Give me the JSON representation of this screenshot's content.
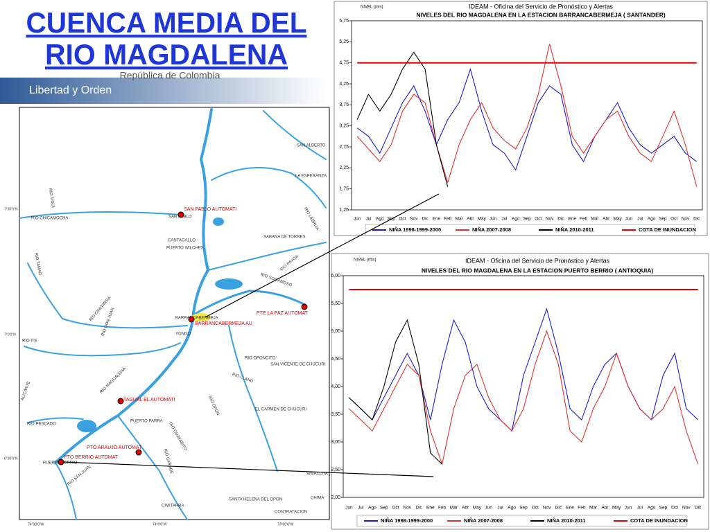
{
  "header": {
    "title_lines": [
      "CUENCA  MEDIA DEL",
      "RIO  MAGDALENA"
    ],
    "banner": "Libertad y Orden",
    "banner_sub": "República de Colombia"
  },
  "map": {
    "places": [
      "SAN ALBERTO",
      "LA ESPERANZA",
      "RIO LEBRIJA",
      "RIO TIGUI",
      "SAN PABLO",
      "RIO CHICAMOCHA",
      "SABANA DE TORRES",
      "CANTAGALLO",
      "PUERTO WILCHES",
      "RIO TAMAR",
      "RIO PAYOA",
      "RIO SOGAMOSO",
      "RIO CIMITARRA",
      "RIO DON JUAN",
      "BARRANCABERMEJA",
      "YONDO",
      "RIO ITE",
      "RIO OPONCITO",
      "SAN VICENTE DE CHUCURI",
      "RIO LLANO",
      "RIO MAGDALENA",
      "RIO OPON",
      "ALICANTE",
      "RIO PESCADO",
      "PUERTO PARRA",
      "RIO GUAYABITO",
      "EL CARMEN DE CHUCURI",
      "RIO CARARE",
      "PUERTO BERRIO",
      "RIO SAN JUAN",
      "SANTA HELENA DEL OPON",
      "CIMITARRA",
      "CHIMA",
      "CONTRATACION",
      "SIMACOTA"
    ],
    "stations": [
      "SAN PABLO AUTOMATI",
      "PTE LA PAZ AUTOMAT",
      "BARRANCABERMEJA AU",
      "TAGUAL EL AUTOMATI",
      "PTO ARAUJO AUTOMAT",
      "PTO BERRIO AUTOMAT"
    ],
    "coordinates": [
      "7°30'0\"N",
      "7°0'0\"N",
      "6°30'0\"N",
      "74°30'0\"W",
      "74°0'0\"W",
      "73°30'0\"W"
    ]
  },
  "chart_data": [
    {
      "type": "line",
      "title": "IDEAM - Oficina del Servicio de Pronóstico y Alertas",
      "subtitle": "NIVELES DEL RIO MAGDALENA EN LA ESTACION BARRANCABERMEJA ( SANTANDER)",
      "y_label": "NIVEL (mts)",
      "categories": [
        "Jun",
        "Jul",
        "Ago",
        "Sep",
        "Oct",
        "Nov",
        "Dic",
        "Ene",
        "Feb",
        "Mar",
        "Abr",
        "May",
        "Jun",
        "Jul",
        "Ago",
        "Sep",
        "Oct",
        "Nov",
        "Dic",
        "Ene",
        "Feb",
        "Mar",
        "Abr",
        "May",
        "Jun",
        "Jul",
        "Ago",
        "Sep",
        "Oct",
        "Nov",
        "Dic"
      ],
      "ylim": [
        1.25,
        5.75
      ],
      "yticks": [
        {
          "value": 1.25,
          "label": "1,25"
        },
        {
          "value": 1.75,
          "label": "1,75"
        },
        {
          "value": 2.25,
          "label": "2,25"
        },
        {
          "value": 2.75,
          "label": "2,75"
        },
        {
          "value": 3.25,
          "label": "3,25"
        },
        {
          "value": 3.75,
          "label": "3,75"
        },
        {
          "value": 4.25,
          "label": "4,25"
        },
        {
          "value": 4.75,
          "label": "4,75"
        },
        {
          "value": 5.25,
          "label": "5,25"
        },
        {
          "value": 5.75,
          "label": "5,75"
        }
      ],
      "grid": false,
      "series": [
        {
          "name": "NIÑA 1998-1999-2000",
          "color": "#1a1acc",
          "values": [
            3.2,
            3.0,
            2.6,
            3.2,
            3.8,
            4.2,
            3.6,
            2.8,
            3.4,
            3.8,
            4.6,
            3.6,
            2.8,
            2.6,
            2.2,
            3.0,
            3.8,
            4.2,
            4.0,
            2.8,
            2.4,
            3.0,
            3.4,
            3.8,
            3.2,
            2.8,
            2.6,
            2.8,
            3.0,
            2.6,
            2.4
          ]
        },
        {
          "name": "NIÑA 2007-2008",
          "color": "#e03030",
          "values": [
            3.0,
            2.7,
            2.4,
            2.8,
            3.6,
            4.0,
            3.8,
            2.8,
            1.9,
            2.8,
            3.4,
            3.8,
            3.2,
            2.9,
            2.7,
            3.2,
            4.0,
            5.2,
            4.2,
            3.0,
            2.6,
            3.0,
            3.4,
            3.6,
            3.0,
            2.6,
            2.4,
            3.0,
            3.6,
            2.8,
            1.8
          ]
        },
        {
          "name": "NIÑA 2010-2011",
          "color": "#000000",
          "values": [
            3.4,
            4.0,
            3.6,
            4.0,
            4.6,
            5.0,
            4.6,
            2.8,
            1.8,
            null,
            null,
            null,
            null,
            null,
            null,
            null,
            null,
            null,
            null,
            null,
            null,
            null,
            null,
            null,
            null,
            null,
            null,
            null,
            null,
            null,
            null
          ]
        },
        {
          "name": "COTA DE INUNDACION",
          "color": "#e00000",
          "values": [
            4.75,
            4.75,
            4.75,
            4.75,
            4.75,
            4.75,
            4.75,
            4.75,
            4.75,
            4.75,
            4.75,
            4.75,
            4.75,
            4.75,
            4.75,
            4.75,
            4.75,
            4.75,
            4.75,
            4.75,
            4.75,
            4.75,
            4.75,
            4.75,
            4.75,
            4.75,
            4.75,
            4.75,
            4.75,
            4.75,
            4.75
          ]
        }
      ]
    },
    {
      "type": "line",
      "title": "IDEAM - Oficina del Servicio de Pronóstico y Alertas",
      "subtitle": "NIVELES DEL RIO MAGDALENA EN LA ESTACION PUERTO BERRIO ( ANTIOQUIA)",
      "y_label": "NIVEL (mts)",
      "categories": [
        "Jun",
        "Jul",
        "Ago",
        "Sep",
        "Oct",
        "Nov",
        "Dic",
        "Ene",
        "Feb",
        "Mar",
        "Abr",
        "May",
        "Jun",
        "Jul",
        "Ago",
        "Sep",
        "Oct",
        "Nov",
        "Dic",
        "Ene",
        "Feb",
        "Mar",
        "Abr",
        "May",
        "Jun",
        "Jul",
        "Ago",
        "Sep",
        "Oct",
        "Nov",
        "Dic"
      ],
      "ylim": [
        2,
        6
      ],
      "yticks": [
        {
          "value": 2,
          "label": "2,00"
        },
        {
          "value": 2.5,
          "label": "2,50"
        },
        {
          "value": 3,
          "label": "3,00"
        },
        {
          "value": 3.5,
          "label": "3,50"
        },
        {
          "value": 4,
          "label": "4,00"
        },
        {
          "value": 4.5,
          "label": "4,50"
        },
        {
          "value": 5,
          "label": "5,00"
        },
        {
          "value": 5.5,
          "label": "5,50"
        },
        {
          "value": 6,
          "label": "6,00"
        }
      ],
      "grid": false,
      "series": [
        {
          "name": "NIÑA 1998-1999-2000",
          "color": "#1a1acc",
          "values": [
            3.8,
            3.6,
            3.4,
            3.8,
            4.2,
            4.6,
            4.2,
            3.4,
            4.4,
            5.2,
            4.8,
            4.0,
            3.6,
            3.4,
            3.2,
            4.2,
            4.8,
            5.4,
            4.6,
            3.6,
            3.4,
            4.0,
            4.4,
            4.6,
            4.0,
            3.6,
            3.4,
            4.2,
            4.6,
            3.6,
            3.4
          ]
        },
        {
          "name": "NIÑA 2007-2008",
          "color": "#e03030",
          "values": [
            3.6,
            3.4,
            3.2,
            3.6,
            4.0,
            4.4,
            4.2,
            3.2,
            2.6,
            3.6,
            4.2,
            4.4,
            3.8,
            3.4,
            3.2,
            3.6,
            4.4,
            5.0,
            4.4,
            3.2,
            3.0,
            3.6,
            4.0,
            4.6,
            4.0,
            3.6,
            3.4,
            3.6,
            4.0,
            3.2,
            2.6
          ]
        },
        {
          "name": "NIÑA 2010-2011",
          "color": "#000000",
          "values": [
            3.8,
            3.6,
            3.4,
            4.0,
            4.8,
            5.2,
            4.4,
            2.8,
            2.6,
            null,
            null,
            null,
            null,
            null,
            null,
            null,
            null,
            null,
            null,
            null,
            null,
            null,
            null,
            null,
            null,
            null,
            null,
            null,
            null,
            null,
            null
          ]
        },
        {
          "name": "COTA DE INUNDACION",
          "color": "#e00000",
          "values": [
            5.75,
            5.75,
            5.75,
            5.75,
            5.75,
            5.75,
            5.75,
            5.75,
            5.75,
            5.75,
            5.75,
            5.75,
            5.75,
            5.75,
            5.75,
            5.75,
            5.75,
            5.75,
            5.75,
            5.75,
            5.75,
            5.75,
            5.75,
            5.75,
            5.75,
            5.75,
            5.75,
            5.75,
            5.75,
            5.75,
            5.75
          ]
        }
      ]
    }
  ]
}
